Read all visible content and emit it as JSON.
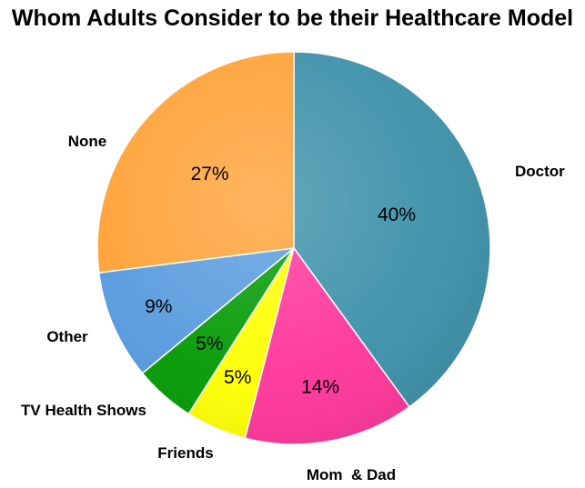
{
  "chart_data": {
    "type": "pie",
    "title": "Whom Adults Consider to be their Healthcare Model",
    "start_angle_deg": 0,
    "direction": "clockwise",
    "slices": [
      {
        "label": "Doctor",
        "value": 40,
        "value_label": "40%",
        "color": "#3A8FA8"
      },
      {
        "label": "Mom  & Dad",
        "value": 14,
        "value_label": "14%",
        "color": "#FF3399"
      },
      {
        "label": "Friends",
        "value": 5,
        "value_label": "5%",
        "color": "#FFFF00"
      },
      {
        "label": "TV Health Shows",
        "value": 5,
        "value_label": "5%",
        "color": "#009900"
      },
      {
        "label": "Other",
        "value": 9,
        "value_label": "9%",
        "color": "#5599DD"
      },
      {
        "label": "None",
        "value": 27,
        "value_label": "27%",
        "color": "#FFA033"
      }
    ]
  }
}
